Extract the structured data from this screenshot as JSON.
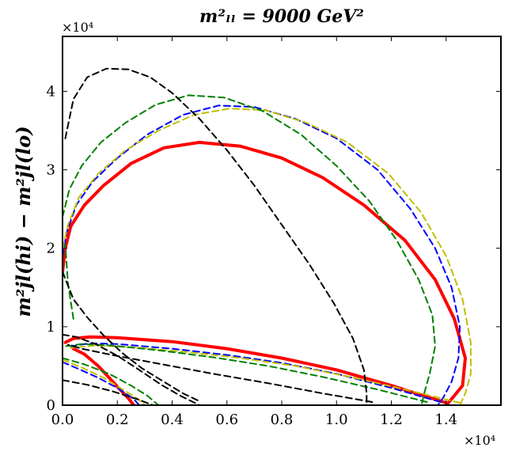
{
  "chart_data": {
    "type": "line",
    "title": "m²ₗₗ = 9000 GeV²",
    "xlabel": "",
    "ylabel": "m²jl(hi) − m²jl(lo)",
    "x_multiplier_label": "×10⁴",
    "y_multiplier_label": "×10⁴",
    "xlim": [
      0,
      16000
    ],
    "ylim": [
      0,
      47000
    ],
    "x_ticks": [
      0,
      2000,
      4000,
      6000,
      8000,
      10000,
      12000,
      14000
    ],
    "x_tick_labels": [
      "0.0",
      "0.2",
      "0.4",
      "0.6",
      "0.8",
      "1.0",
      "1.2",
      "1.4"
    ],
    "y_ticks": [
      0,
      10000,
      20000,
      30000,
      40000
    ],
    "y_tick_labels": [
      "0",
      "1",
      "2",
      "3",
      "4"
    ],
    "grid": false,
    "series": [
      {
        "color": "#ff0000",
        "style": "solid",
        "width": 4,
        "segments": [
          [
            [
              0,
              17000
            ],
            [
              100,
              20000
            ],
            [
              300,
              22800
            ],
            [
              800,
              25500
            ],
            [
              1500,
              28000
            ],
            [
              2500,
              30800
            ],
            [
              3700,
              32800
            ],
            [
              5000,
              33500
            ],
            [
              6500,
              33000
            ],
            [
              8000,
              31500
            ],
            [
              9500,
              29000
            ],
            [
              11000,
              25500
            ],
            [
              12500,
              21000
            ],
            [
              13600,
              16000
            ],
            [
              14300,
              11000
            ],
            [
              14700,
              6000
            ],
            [
              14600,
              2500
            ],
            [
              14250,
              1000
            ],
            [
              14000,
              0
            ]
          ],
          [
            [
              14000,
              300
            ],
            [
              12000,
              2500
            ],
            [
              10000,
              4500
            ],
            [
              8000,
              6000
            ],
            [
              6000,
              7200
            ],
            [
              4000,
              8100
            ],
            [
              2000,
              8600
            ],
            [
              1000,
              8700
            ],
            [
              400,
              8500
            ],
            [
              100,
              8000
            ]
          ],
          [
            [
              400,
              7200
            ],
            [
              800,
              6500
            ],
            [
              1300,
              5000
            ],
            [
              1700,
              3500
            ],
            [
              2100,
              2000
            ],
            [
              2400,
              900
            ],
            [
              2600,
              0
            ]
          ]
        ]
      },
      {
        "color": "#0000ff",
        "style": "dashed",
        "width": 2,
        "segments": [
          [
            [
              0,
              19000
            ],
            [
              150,
              22000
            ],
            [
              500,
              25500
            ],
            [
              1100,
              28500
            ],
            [
              2000,
              31500
            ],
            [
              3100,
              34500
            ],
            [
              4400,
              37000
            ],
            [
              5700,
              38200
            ],
            [
              7000,
              38000
            ],
            [
              8500,
              36500
            ],
            [
              10000,
              34000
            ],
            [
              11500,
              30000
            ],
            [
              12700,
              25000
            ],
            [
              13600,
              20000
            ],
            [
              14200,
              15000
            ],
            [
              14500,
              10000
            ],
            [
              14450,
              6000
            ],
            [
              14200,
              3000
            ],
            [
              13900,
              1000
            ],
            [
              13700,
              0
            ]
          ],
          [
            [
              13800,
              400
            ],
            [
              12000,
              2200
            ],
            [
              10000,
              4000
            ],
            [
              8000,
              5400
            ],
            [
              6000,
              6400
            ],
            [
              4000,
              7200
            ],
            [
              2000,
              7800
            ],
            [
              1000,
              7900
            ],
            [
              300,
              7500
            ]
          ],
          [
            [
              0,
              5500
            ],
            [
              600,
              4600
            ],
            [
              1300,
              3500
            ],
            [
              2000,
              2200
            ],
            [
              2600,
              800
            ],
            [
              2800,
              0
            ]
          ]
        ]
      },
      {
        "color": "#bfbf00",
        "style": "dashed",
        "width": 2,
        "segments": [
          [
            [
              0,
              20000
            ],
            [
              200,
              23000
            ],
            [
              600,
              26500
            ],
            [
              1300,
              29500
            ],
            [
              2300,
              32500
            ],
            [
              3500,
              35000
            ],
            [
              4800,
              37000
            ],
            [
              6100,
              37800
            ],
            [
              7400,
              37600
            ],
            [
              8900,
              36000
            ],
            [
              10400,
              33500
            ],
            [
              11900,
              29500
            ],
            [
              13100,
              24500
            ],
            [
              14000,
              19000
            ],
            [
              14600,
              13500
            ],
            [
              14900,
              8000
            ],
            [
              14900,
              4000
            ],
            [
              14700,
              1500
            ],
            [
              14500,
              0
            ]
          ],
          [
            [
              14500,
              300
            ],
            [
              12500,
              2000
            ],
            [
              10500,
              3600
            ],
            [
              8500,
              5000
            ],
            [
              6500,
              6000
            ],
            [
              4500,
              6800
            ],
            [
              2500,
              7400
            ],
            [
              1200,
              7600
            ],
            [
              300,
              7300
            ]
          ],
          [
            [
              0,
              5800
            ],
            [
              700,
              4800
            ],
            [
              1500,
              3500
            ],
            [
              2200,
              2000
            ],
            [
              2800,
              700
            ],
            [
              3000,
              0
            ]
          ]
        ]
      },
      {
        "color": "#008000",
        "style": "dashed",
        "width": 2,
        "segments": [
          [
            [
              0,
              24000
            ],
            [
              250,
              27500
            ],
            [
              700,
              30500
            ],
            [
              1400,
              33500
            ],
            [
              2300,
              36000
            ],
            [
              3400,
              38300
            ],
            [
              4600,
              39500
            ],
            [
              5900,
              39200
            ],
            [
              7300,
              37500
            ],
            [
              8700,
              34500
            ],
            [
              10000,
              30500
            ],
            [
              11200,
              26000
            ],
            [
              12200,
              21000
            ],
            [
              13000,
              16000
            ],
            [
              13500,
              11500
            ],
            [
              13600,
              7500
            ],
            [
              13400,
              4000
            ],
            [
              13200,
              1500
            ],
            [
              13100,
              0
            ]
          ],
          [
            [
              13300,
              400
            ],
            [
              11500,
              2000
            ],
            [
              9500,
              3600
            ],
            [
              7500,
              5000
            ],
            [
              5500,
              6100
            ],
            [
              3500,
              7000
            ],
            [
              1800,
              7600
            ],
            [
              700,
              7800
            ],
            [
              100,
              7500
            ]
          ],
          [
            [
              0,
              6000
            ],
            [
              800,
              5200
            ],
            [
              1700,
              4000
            ],
            [
              2500,
              2500
            ],
            [
              3100,
              1200
            ],
            [
              3500,
              0
            ]
          ],
          [
            [
              400,
              11000
            ],
            [
              200,
              15500
            ],
            [
              100,
              20500
            ]
          ]
        ]
      },
      {
        "color": "#000000",
        "style": "dashed",
        "width": 2,
        "segments": [
          [
            [
              100,
              34000
            ],
            [
              400,
              39000
            ],
            [
              900,
              41800
            ],
            [
              1600,
              42900
            ],
            [
              2400,
              42800
            ],
            [
              3200,
              41800
            ],
            [
              4000,
              39800
            ],
            [
              5000,
              36500
            ],
            [
              6000,
              32500
            ],
            [
              7000,
              28000
            ],
            [
              8000,
              23000
            ],
            [
              9000,
              18000
            ],
            [
              9900,
              13000
            ],
            [
              10600,
              8500
            ],
            [
              11000,
              4500
            ],
            [
              11100,
              1500
            ],
            [
              11100,
              0
            ]
          ],
          [
            [
              11300,
              400
            ],
            [
              9500,
              1500
            ],
            [
              7500,
              2800
            ],
            [
              5500,
              4000
            ],
            [
              3500,
              5300
            ],
            [
              1800,
              6400
            ],
            [
              700,
              7200
            ],
            [
              200,
              7700
            ]
          ],
          [
            [
              0,
              9000
            ],
            [
              500,
              8700
            ],
            [
              1200,
              7800
            ],
            [
              2000,
              6300
            ],
            [
              2800,
              4500
            ],
            [
              3600,
              2600
            ],
            [
              4300,
              1200
            ],
            [
              5000,
              0
            ]
          ],
          [
            [
              0,
              3200
            ],
            [
              900,
              2600
            ],
            [
              1800,
              1800
            ],
            [
              2700,
              800
            ],
            [
              3300,
              0
            ]
          ],
          [
            [
              0,
              17000
            ],
            [
              400,
              13500
            ],
            [
              900,
              11200
            ],
            [
              1500,
              8900
            ],
            [
              2200,
              6600
            ],
            [
              2900,
              4700
            ],
            [
              3600,
              3200
            ],
            [
              4400,
              1500
            ],
            [
              5000,
              500
            ]
          ]
        ]
      }
    ]
  }
}
